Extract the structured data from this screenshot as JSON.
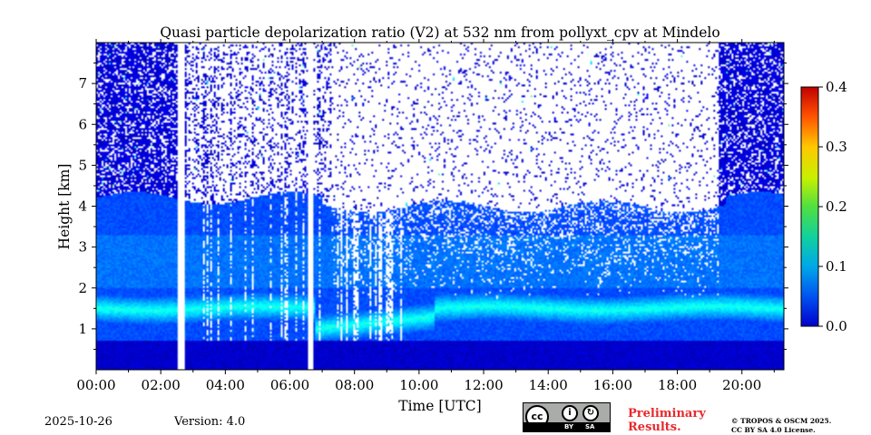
{
  "chart_data": {
    "type": "heatmap",
    "title": "Quasi particle depolarization ratio (V2) at 532 nm from pollyxt_cpv at Mindelo",
    "xlabel": "Time [UTC]",
    "ylabel": "Height [km]",
    "xlim_hours": [
      0,
      21.3
    ],
    "ylim_km": [
      0,
      8
    ],
    "xticks": [
      "00:00",
      "02:00",
      "04:00",
      "06:00",
      "08:00",
      "10:00",
      "12:00",
      "14:00",
      "16:00",
      "18:00",
      "20:00"
    ],
    "yticks": [
      "1",
      "2",
      "3",
      "4",
      "5",
      "6",
      "7"
    ],
    "colorbar": {
      "min": 0.0,
      "max": 0.4,
      "ticks": [
        "0.0",
        "0.1",
        "0.2",
        "0.3",
        "0.4"
      ],
      "colormap": "jet"
    },
    "no_data_gaps_hours": [
      [
        2.55,
        2.72
      ],
      [
        6.55,
        6.72
      ]
    ],
    "layers": [
      {
        "name": "near-surface low-depol layer",
        "bottom_km": 0.0,
        "top_km": 0.7,
        "value": 0.02
      },
      {
        "name": "marine/dust mixed layer",
        "bottom_km": 0.7,
        "top_km": 4.2,
        "value": 0.09
      },
      {
        "name": "enhanced depol band",
        "center_km": 1.5,
        "value": 0.16
      },
      {
        "name": "noisy free troposphere (sparse)",
        "bottom_km": 4.3,
        "top_km": 8.0,
        "value": 0.02
      }
    ]
  },
  "footer": {
    "date": "2025-10-26",
    "version": "Version: 4.0",
    "preliminary": "Preliminary Results.",
    "license_line1": "© TROPOS & OSCM 2025.",
    "license_line2": "CC BY SA 4.0 License.",
    "cc_by": "BY",
    "cc_sa": "SA"
  },
  "colors": {
    "background_low": "#0a55e0",
    "preliminary": "#e8292c"
  }
}
